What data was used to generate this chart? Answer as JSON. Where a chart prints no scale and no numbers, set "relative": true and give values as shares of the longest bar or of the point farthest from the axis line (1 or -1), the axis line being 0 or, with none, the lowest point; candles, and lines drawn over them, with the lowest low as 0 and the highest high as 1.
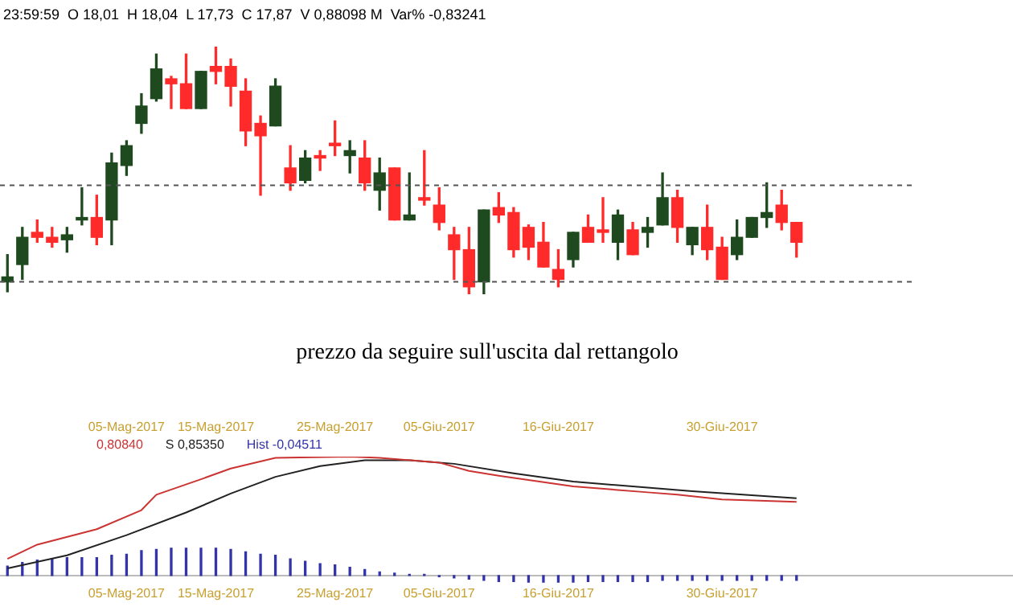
{
  "chart_data": [
    {
      "type": "candlestick",
      "relative": true,
      "subtitle": "23:59:59  O 18,01  H 18,04  L 17,73  C 17,87  V 0,88098 M  Var% -0,83241",
      "annotations": [
        "prezzo da seguire sull'uscita dal rettangolo"
      ],
      "tick_labels": false,
      "categories": [
        null,
        null,
        null,
        null,
        null,
        null,
        null,
        null,
        null,
        null,
        null,
        null,
        null,
        null,
        null,
        null,
        null,
        null,
        null,
        null,
        null,
        null,
        null,
        null,
        null,
        null,
        null,
        null,
        null,
        null,
        null,
        null,
        null,
        null,
        null,
        null,
        null,
        null,
        null,
        null,
        null,
        null,
        null,
        null,
        null,
        null,
        null,
        null,
        null,
        null,
        null,
        null,
        null,
        null
      ],
      "ohlc": [
        [
          0.05,
          0.16,
          0.01,
          0.07
        ],
        [
          0.12,
          0.27,
          0.06,
          0.23
        ],
        [
          0.25,
          0.3,
          0.21,
          0.23
        ],
        [
          0.23,
          0.27,
          0.19,
          0.21
        ],
        [
          0.22,
          0.27,
          0.17,
          0.24
        ],
        [
          0.3,
          0.43,
          0.28,
          0.31
        ],
        [
          0.31,
          0.4,
          0.2,
          0.23
        ],
        [
          0.3,
          0.57,
          0.2,
          0.53
        ],
        [
          0.52,
          0.62,
          0.48,
          0.6
        ],
        [
          0.69,
          0.81,
          0.65,
          0.76
        ],
        [
          0.79,
          0.97,
          0.78,
          0.91
        ],
        [
          0.87,
          0.88,
          0.75,
          0.85
        ],
        [
          0.85,
          0.97,
          0.75,
          0.75
        ],
        [
          0.75,
          0.9,
          0.75,
          0.9
        ],
        [
          0.92,
          1,
          0.85,
          0.9
        ],
        [
          0.92,
          0.95,
          0.76,
          0.84
        ],
        [
          0.82,
          0.87,
          0.6,
          0.66
        ],
        [
          0.69,
          0.72,
          0.4,
          0.64
        ],
        [
          0.68,
          0.87,
          0.68,
          0.84
        ],
        [
          0.51,
          0.6,
          0.42,
          0.45
        ],
        [
          0.46,
          0.58,
          0.45,
          0.55
        ],
        [
          0.56,
          0.58,
          0.5,
          0.55
        ],
        [
          0.61,
          0.7,
          0.56,
          0.6
        ],
        [
          0.56,
          0.62,
          0.49,
          0.58
        ],
        [
          0.55,
          0.62,
          0.42,
          0.45
        ],
        [
          0.42,
          0.55,
          0.34,
          0.49
        ],
        [
          0.51,
          0.51,
          0.3,
          0.3
        ],
        [
          0.3,
          0.49,
          0.3,
          0.32
        ],
        [
          0.39,
          0.58,
          0.36,
          0.38
        ],
        [
          0.36,
          0.43,
          0.26,
          0.29
        ],
        [
          0.24,
          0.27,
          0.06,
          0.18
        ],
        [
          0.18,
          0.27,
          0,
          0.03
        ],
        [
          0.05,
          0.34,
          0,
          0.34
        ],
        [
          0.35,
          0.41,
          0.29,
          0.32
        ],
        [
          0.33,
          0.35,
          0.15,
          0.18
        ],
        [
          0.27,
          0.28,
          0.14,
          0.19
        ],
        [
          0.21,
          0.29,
          0.11,
          0.11
        ],
        [
          0.1,
          0.18,
          0.03,
          0.06
        ],
        [
          0.14,
          0.25,
          0.11,
          0.25
        ],
        [
          0.27,
          0.32,
          0.21,
          0.21
        ],
        [
          0.26,
          0.39,
          0.21,
          0.25
        ],
        [
          0.21,
          0.34,
          0.14,
          0.32
        ],
        [
          0.26,
          0.29,
          0.16,
          0.16
        ],
        [
          0.25,
          0.31,
          0.19,
          0.27
        ],
        [
          0.28,
          0.49,
          0.28,
          0.39
        ],
        [
          0.39,
          0.42,
          0.21,
          0.27
        ],
        [
          0.2,
          0.27,
          0.16,
          0.27
        ],
        [
          0.27,
          0.36,
          0.14,
          0.18
        ],
        [
          0.19,
          0.23,
          0.06,
          0.06
        ],
        [
          0.16,
          0.3,
          0.14,
          0.23
        ],
        [
          0.23,
          0.31,
          0.23,
          0.31
        ],
        [
          0.31,
          0.45,
          0.27,
          0.33
        ],
        [
          0.36,
          0.42,
          0.26,
          0.29
        ],
        [
          0.29,
          0.29,
          0.15,
          0.21
        ]
      ],
      "colors": [
        "#1f4a1f",
        "#1f4a1f",
        "#ff2a2a",
        "#ff2a2a",
        "#1f4a1f",
        "#1f4a1f",
        "#ff2a2a",
        "#1f4a1f",
        "#1f4a1f",
        "#1f4a1f",
        "#1f4a1f",
        "#ff2a2a",
        "#ff2a2a",
        "#1f4a1f",
        "#ff2a2a",
        "#ff2a2a",
        "#ff2a2a",
        "#ff2a2a",
        "#1f4a1f",
        "#ff2a2a",
        "#1f4a1f",
        "#ff2a2a",
        "#ff2a2a",
        "#1f4a1f",
        "#ff2a2a",
        "#1f4a1f",
        "#ff2a2a",
        "#1f4a1f",
        "#ff2a2a",
        "#ff2a2a",
        "#ff2a2a",
        "#ff2a2a",
        "#1f4a1f",
        "#ff2a2a",
        "#ff2a2a",
        "#ff2a2a",
        "#ff2a2a",
        "#ff2a2a",
        "#1f4a1f",
        "#ff2a2a",
        "#ff2a2a",
        "#1f4a1f",
        "#ff2a2a",
        "#1f4a1f",
        "#1f4a1f",
        "#ff2a2a",
        "#1f4a1f",
        "#ff2a2a",
        "#ff2a2a",
        "#1f4a1f",
        "#1f4a1f",
        "#1f4a1f",
        "#ff2a2a",
        "#ff2a2a"
      ],
      "ref_lines": [
        {
          "axis": "y",
          "value": 0.44,
          "line_style": "dashed",
          "color": "#555555"
        },
        {
          "axis": "y",
          "value": 0.05,
          "line_style": "dashed",
          "color": "#555555"
        }
      ]
    },
    {
      "type": "line",
      "relative": true,
      "tick_labels": "x",
      "annotations": [
        "0,80840",
        "S 0,85350",
        "Hist -0,04511"
      ],
      "categories": [
        null,
        null,
        null,
        null,
        null,
        null,
        null,
        null,
        "05-Mag-2017",
        null,
        null,
        null,
        null,
        null,
        "15-Mag-2017",
        null,
        null,
        null,
        null,
        null,
        null,
        null,
        "25-Mag-2017",
        null,
        null,
        null,
        null,
        null,
        null,
        "05-Giu-2017",
        null,
        null,
        null,
        null,
        null,
        null,
        null,
        "16-Giu-2017",
        null,
        null,
        null,
        null,
        null,
        null,
        null,
        null,
        null,
        null,
        "30-Giu-2017",
        null,
        null,
        null,
        null,
        null
      ],
      "series": [
        {
          "type": "line",
          "color": "#cc3333",
          "values": [
            0.14,
            null,
            0.26,
            null,
            null,
            null,
            0.39,
            null,
            null,
            0.55,
            0.68,
            null,
            null,
            0.81,
            null,
            0.9,
            null,
            null,
            0.99,
            null,
            null,
            null,
            null,
            1.0,
            null,
            0.99,
            null,
            null,
            null,
            0.95,
            null,
            0.88,
            null,
            0.84,
            null,
            null,
            null,
            null,
            0.75,
            null,
            null,
            null,
            null,
            0.7,
            null,
            0.68,
            null,
            null,
            0.64,
            null,
            null,
            null,
            null,
            0.62
          ]
        },
        {
          "type": "line",
          "color": "#222222",
          "values": [
            0.06,
            null,
            null,
            null,
            0.17,
            null,
            null,
            null,
            0.34,
            null,
            null,
            null,
            0.53,
            null,
            null,
            0.69,
            null,
            null,
            0.83,
            null,
            null,
            0.92,
            null,
            null,
            0.97,
            null,
            null,
            0.97,
            null,
            null,
            0.94,
            null,
            null,
            null,
            0.86,
            null,
            null,
            null,
            0.79,
            null,
            null,
            null,
            null,
            0.74,
            null,
            null,
            0.71,
            null,
            null,
            null,
            null,
            null,
            null,
            0.65
          ]
        },
        {
          "type": "bar",
          "color": "#3333aa",
          "values": [
            0.08,
            0.11,
            0.13,
            0.14,
            0.15,
            0.15,
            0.15,
            0.17,
            0.18,
            0.21,
            0.22,
            0.23,
            0.23,
            0.23,
            0.23,
            0.22,
            0.2,
            0.18,
            0.17,
            0.14,
            0.12,
            0.1,
            0.09,
            0.07,
            0.05,
            0.03,
            0.02,
            0.01,
            0.01,
            -0.01,
            -0.02,
            -0.03,
            -0.04,
            -0.05,
            -0.05,
            -0.06,
            -0.06,
            -0.06,
            -0.06,
            -0.05,
            -0.05,
            -0.05,
            -0.05,
            -0.05,
            -0.04,
            -0.04,
            -0.04,
            -0.04,
            -0.04,
            -0.04,
            -0.04,
            -0.04,
            -0.04,
            -0.04
          ]
        }
      ]
    }
  ]
}
